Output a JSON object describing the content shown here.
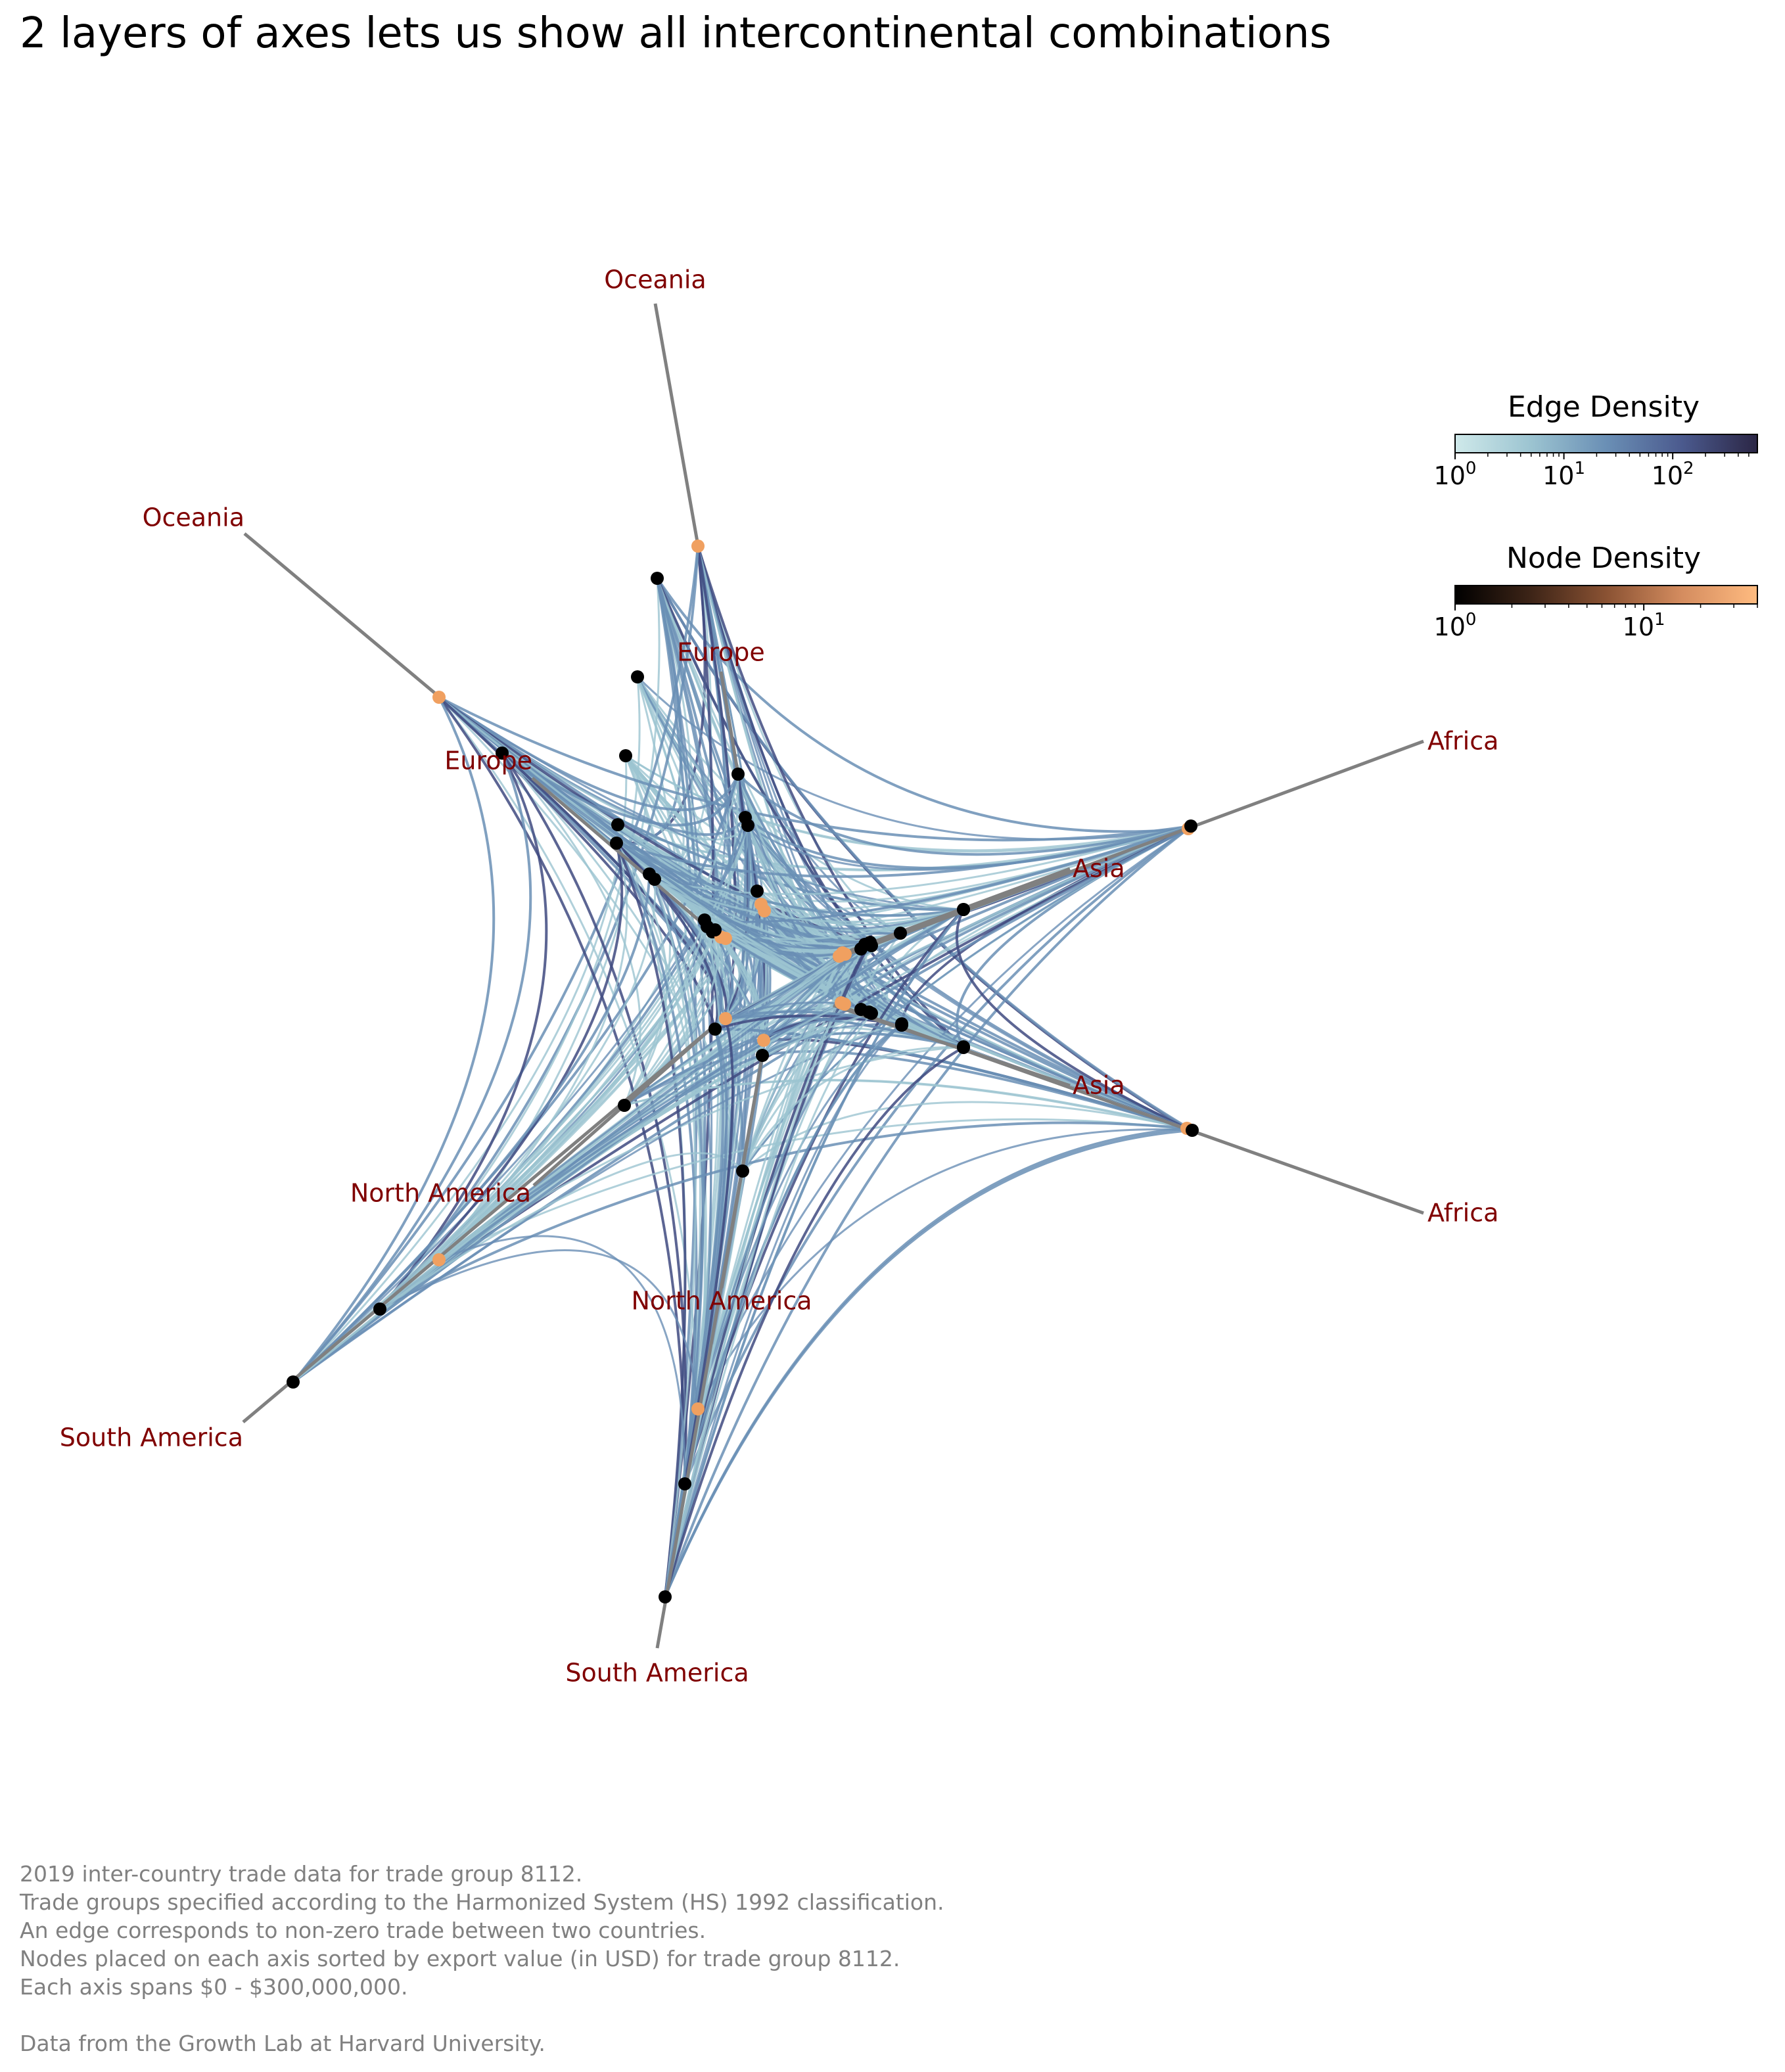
{
  "title": "2 layers of axes lets us show all intercontinental combinations",
  "chart_data": {
    "type": "hive-network",
    "description_axes": "Two layers of axes, one pair per continent",
    "axes": [
      {
        "label": "Oceania",
        "layer": "outer"
      },
      {
        "label": "Oceania",
        "layer": "inner"
      },
      {
        "label": "Europe",
        "layer": "inner"
      },
      {
        "label": "Europe",
        "layer": "outer"
      },
      {
        "label": "Africa",
        "layer": "inner"
      },
      {
        "label": "Africa",
        "layer": "outer"
      },
      {
        "label": "Asia",
        "layer": "inner"
      },
      {
        "label": "Asia",
        "layer": "outer"
      },
      {
        "label": "North America",
        "layer": "inner"
      },
      {
        "label": "North America",
        "layer": "outer"
      },
      {
        "label": "South America",
        "layer": "inner"
      },
      {
        "label": "South America",
        "layer": "outer"
      }
    ],
    "axis_span": [
      0,
      300000000
    ],
    "edge_colorbar": {
      "title": "Edge Density",
      "scale": "log",
      "range": [
        1,
        600
      ],
      "ticks": [
        "10^0",
        "10^1",
        "10^2"
      ],
      "colors": [
        "#cfe9ea",
        "#9cc4d1",
        "#6a8fb5",
        "#4b5a8e",
        "#2b2645"
      ]
    },
    "node_colorbar": {
      "title": "Node Density",
      "scale": "log",
      "range": [
        1,
        40
      ],
      "ticks": [
        "10^0",
        "10^1"
      ],
      "colors": [
        "#000000",
        "#3d2417",
        "#8a5233",
        "#d48c5f",
        "#ffbb80"
      ]
    },
    "colors": {
      "axis_line": "#808080",
      "axis_label": "#800000",
      "edge_light": "#9cc4d1",
      "edge_mid": "#6a8fb5",
      "edge_dark": "#3f4a80",
      "node_dark": "#000000",
      "node_light": "#f0a060"
    }
  },
  "notes": [
    "2019 inter-country trade data for trade group 8112.",
    "Trade groups specified according to the Harmonized System (HS) 1992 classification.",
    "An edge corresponds to non-zero trade between two countries.",
    "Nodes placed on each axis sorted by export value (in USD) for trade group 8112.",
    "Each axis spans $0 - $300,000,000.",
    "",
    "Data from the Growth Lab at Harvard University."
  ]
}
